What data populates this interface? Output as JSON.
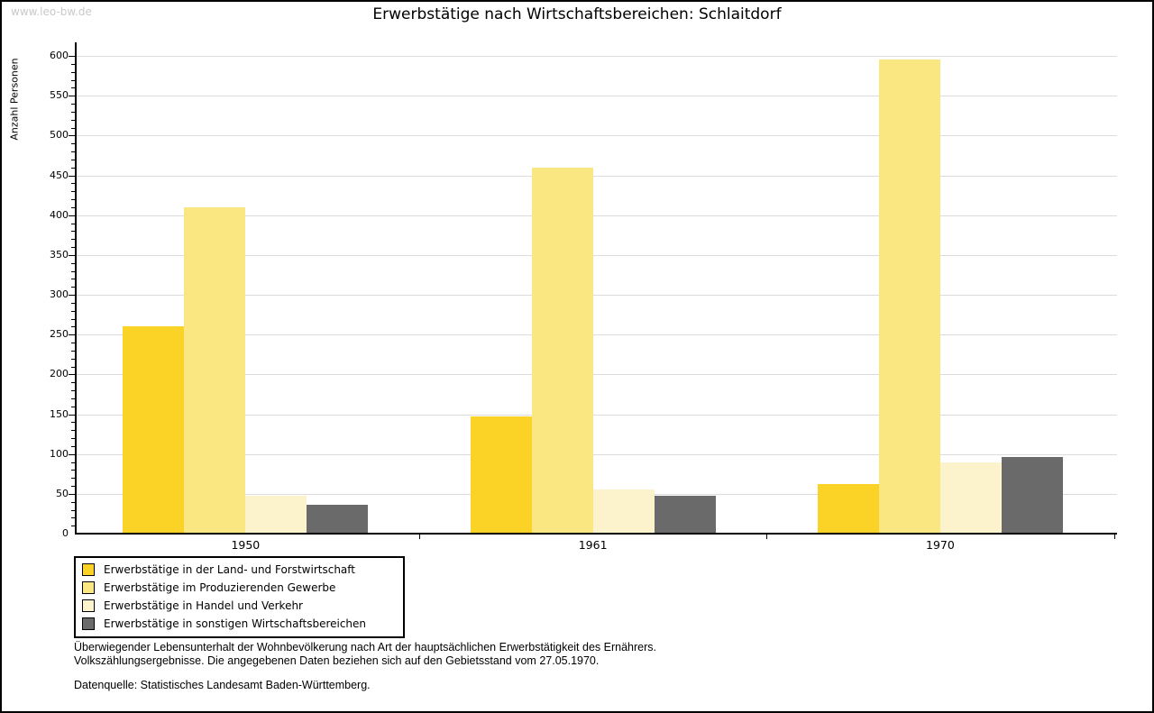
{
  "watermark": "www.leo-bw.de",
  "title": "Erwerbstätige nach Wirtschaftsbereichen: Schlaitdorf",
  "chart_data": {
    "type": "bar",
    "categories": [
      "1950",
      "1961",
      "1970"
    ],
    "series": [
      {
        "name": "Erwerbstätige in der Land- und Forstwirtschaft",
        "color": "#FBD226",
        "values": [
          260,
          147,
          62
        ]
      },
      {
        "name": "Erwerbstätige im Produzierenden Gewerbe",
        "color": "#FAE782",
        "values": [
          410,
          460,
          595
        ]
      },
      {
        "name": "Erwerbstätige in Handel und Verkehr",
        "color": "#FCF2CB",
        "values": [
          48,
          55,
          90
        ]
      },
      {
        "name": "Erwerbstätige in sonstigen Wirtschaftsbereichen",
        "color": "#6A6A6A",
        "values": [
          36,
          47,
          96
        ]
      }
    ],
    "title": "Erwerbstätige nach Wirtschaftsbereichen: Schlaitdorf",
    "xlabel": "",
    "ylabel": "Anzahl Personen",
    "ylim": [
      0,
      600
    ],
    "ytick_step": 50,
    "minor_tick_step": 10,
    "grid": true,
    "legend_position": "bottom-left"
  },
  "footnote": {
    "line1": "Überwiegender Lebensunterhalt der Wohnbevölkerung nach Art der hauptsächlichen Erwerbstätigkeit des Ernährers.",
    "line2": "Volkszählungsergebnisse. Die angegebenen Daten beziehen sich auf den Gebietsstand vom 27.05.1970.",
    "source": "Datenquelle: Statistisches Landesamt Baden-Württemberg."
  }
}
